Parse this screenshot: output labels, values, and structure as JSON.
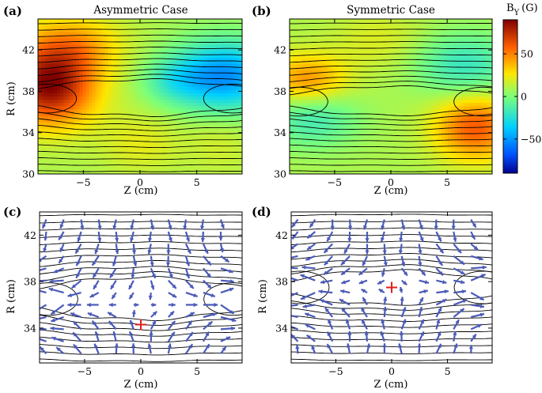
{
  "colors": {
    "contour": "#000000",
    "arrow": "#4a5ab8",
    "xpoint": "#e0201b",
    "colormap": [
      "#00008f",
      "#0050ff",
      "#00d0ff",
      "#7cff79",
      "#ffe600",
      "#ff6000",
      "#800000"
    ]
  },
  "colorbar": {
    "label": "B",
    "label_sub": "Y",
    "label_unit": "(G)",
    "ticks": [
      "50",
      "0",
      "−50"
    ],
    "range": [
      -90,
      90
    ]
  },
  "chart_data": [
    {
      "type": "heatmap",
      "panel": "(a)",
      "title": "Asymmetric Case",
      "xlabel": "Z (cm)",
      "ylabel": "R (cm)",
      "xlim": [
        -9,
        9
      ],
      "ylim": [
        30,
        45
      ],
      "xticks": [
        "−5",
        "0",
        "5"
      ],
      "yticks": [
        "30",
        "34",
        "38",
        "42"
      ],
      "field": "By (G)",
      "features": [
        {
          "z": -7.5,
          "r": 38.5,
          "By": 80
        },
        {
          "z": 7,
          "r": 39.5,
          "By": -55
        },
        {
          "z": 0,
          "r": 33,
          "By": 15
        }
      ]
    },
    {
      "type": "heatmap",
      "panel": "(b)",
      "title": "Symmetric Case",
      "xlabel": "Z (cm)",
      "ylabel": "",
      "xlim": [
        -9,
        9
      ],
      "ylim": [
        30,
        45
      ],
      "xticks": [
        "−5",
        "0",
        "5"
      ],
      "yticks": [
        "30",
        "34",
        "38",
        "42"
      ],
      "field": "By (G)",
      "features": [
        {
          "z": -7,
          "r": 39,
          "By": 35
        },
        {
          "z": 7,
          "r": 35,
          "By": 45
        },
        {
          "z": 6.5,
          "r": 40,
          "By": -25
        },
        {
          "z": -7,
          "r": 35.5,
          "By": -20
        }
      ]
    },
    {
      "type": "scatter",
      "panel": "(c)",
      "xlabel": "Z (cm)",
      "ylabel": "R (cm)",
      "xlim": [
        -9,
        9
      ],
      "ylim": [
        31,
        44
      ],
      "xticks": [
        "−5",
        "0",
        "5"
      ],
      "yticks": [
        "34",
        "38",
        "42"
      ],
      "xpoint": {
        "z": 0,
        "r": 34.3
      }
    },
    {
      "type": "scatter",
      "panel": "(d)",
      "xlabel": "Z (cm)",
      "ylabel": "R (cm)",
      "xlim": [
        -9,
        9
      ],
      "ylim": [
        31,
        44
      ],
      "xticks": [
        "−5",
        "0",
        "5"
      ],
      "yticks": [
        "34",
        "38",
        "42"
      ],
      "xpoint": {
        "z": 0,
        "r": 37.5
      }
    }
  ]
}
